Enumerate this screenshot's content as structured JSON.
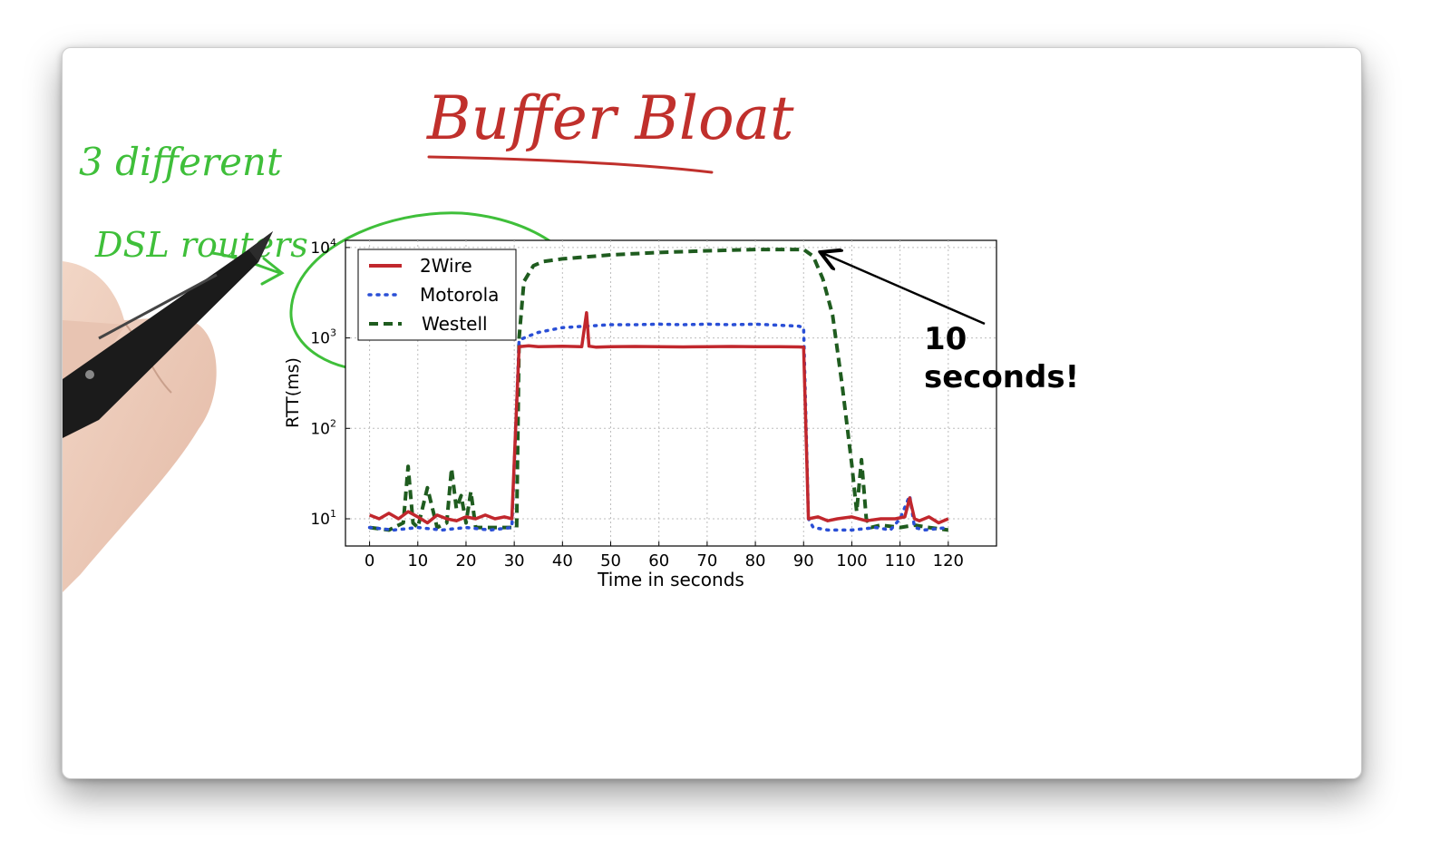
{
  "annotations": {
    "title": "Buffer Bloat",
    "side_note_line1": "3 different",
    "side_note_line2": "DSL routers",
    "callout_line1": "10",
    "callout_line2": "seconds!"
  },
  "colors": {
    "handwriting_red": "#c0302c",
    "handwriting_green": "#3fbf3a",
    "series_2wire": "#c1272d",
    "series_motorola": "#2a4fd6",
    "series_westell": "#1f5c1f"
  },
  "icons": [
    "pen-icon",
    "hand-image"
  ],
  "chart_data": {
    "type": "line",
    "title": "",
    "xlabel": "Time in seconds",
    "ylabel": "RTT(ms)",
    "xscale": "linear",
    "yscale": "log",
    "xlim": [
      -5,
      130
    ],
    "ylim": [
      5,
      12000
    ],
    "xticks": [
      0,
      10,
      20,
      30,
      40,
      50,
      60,
      70,
      80,
      90,
      100,
      110,
      120
    ],
    "yticks": [
      10,
      100,
      1000,
      10000
    ],
    "ytick_labels": [
      {
        "base": "10",
        "exp": "1"
      },
      {
        "base": "10",
        "exp": "2"
      },
      {
        "base": "10",
        "exp": "3"
      },
      {
        "base": "10",
        "exp": "4"
      }
    ],
    "grid": true,
    "legend_position": "top-left",
    "series": [
      {
        "name": "2Wire",
        "style": "solid",
        "x": [
          0,
          2,
          4,
          6,
          8,
          10,
          12,
          14,
          16,
          18,
          20,
          22,
          24,
          26,
          28,
          29.5,
          31,
          33,
          35,
          40,
          44,
          45,
          45.5,
          47,
          50,
          55,
          60,
          65,
          70,
          75,
          80,
          85,
          89,
          90,
          91,
          93,
          95,
          97,
          100,
          103,
          106,
          109,
          111,
          112,
          113,
          114,
          116,
          118,
          120
        ],
        "y": [
          11,
          10,
          11.5,
          10,
          12,
          10.5,
          9,
          11,
          10,
          9.5,
          10.5,
          10,
          11,
          10,
          10.5,
          10,
          800,
          820,
          800,
          810,
          800,
          1900,
          810,
          790,
          800,
          805,
          800,
          795,
          800,
          805,
          800,
          800,
          795,
          790,
          10,
          10.5,
          9.5,
          10,
          10.5,
          9.5,
          10,
          10,
          10.5,
          17,
          10,
          9.5,
          10.5,
          9,
          10
        ]
      },
      {
        "name": "Motorola",
        "style": "dotted",
        "x": [
          0,
          5,
          10,
          15,
          20,
          25,
          29.5,
          31,
          33,
          35,
          40,
          45,
          50,
          55,
          60,
          65,
          70,
          75,
          80,
          85,
          89,
          90,
          91,
          92,
          95,
          100,
          105,
          108,
          110,
          112,
          113,
          115,
          120
        ],
        "y": [
          8,
          7.5,
          8,
          7.5,
          8,
          7.5,
          8,
          950,
          1050,
          1150,
          1300,
          1350,
          1400,
          1400,
          1420,
          1400,
          1420,
          1400,
          1420,
          1380,
          1350,
          1300,
          10,
          8,
          7.5,
          7.5,
          8,
          7.5,
          10,
          18,
          8,
          7.5,
          8
        ]
      },
      {
        "name": "Westell",
        "style": "dashed",
        "x": [
          0,
          4,
          7,
          8,
          9,
          10,
          12,
          14,
          16,
          17,
          18,
          19,
          20,
          21,
          22,
          25,
          28,
          30.5,
          31,
          32,
          34,
          36,
          40,
          50,
          60,
          70,
          80,
          90,
          92,
          94,
          96,
          98,
          100,
          101,
          102,
          103,
          104,
          106,
          110,
          113,
          116,
          120
        ],
        "y": [
          8,
          7.5,
          9,
          38,
          9,
          8,
          22,
          8,
          9,
          36,
          13,
          18,
          9,
          20,
          8,
          8,
          8,
          8,
          1000,
          4200,
          6300,
          7000,
          7500,
          8300,
          8800,
          9200,
          9500,
          9500,
          8000,
          4500,
          1800,
          300,
          40,
          12,
          45,
          10,
          8,
          8.5,
          8,
          8.5,
          8,
          7.5
        ]
      }
    ]
  }
}
